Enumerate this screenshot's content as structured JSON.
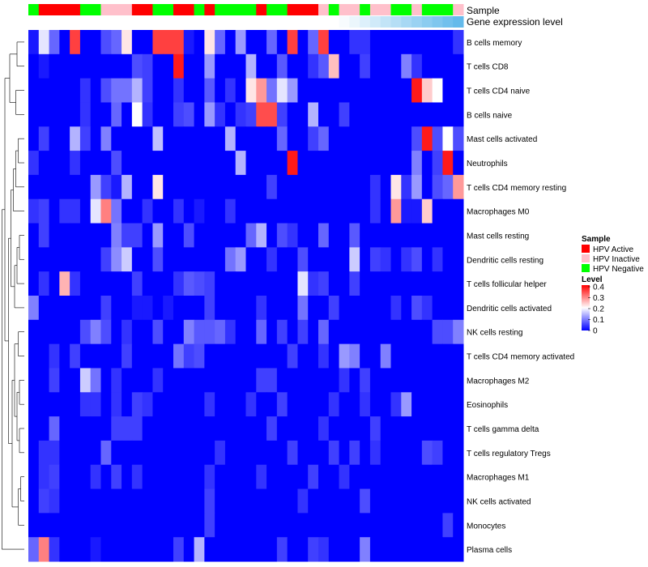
{
  "chart_data": {
    "type": "heatmap",
    "annotation_tracks": [
      "Sample",
      "Gene expression level"
    ],
    "rows": [
      "B cells memory",
      "T cells CD8",
      "T cells CD4 naive",
      "B cells naive",
      "Mast cells activated",
      "Neutrophils",
      "T cells CD4 memory resting",
      "Macrophages M0",
      "Mast cells resting",
      "Dendritic cells resting",
      "T cells follicular helper",
      "Dendritic cells activated",
      "NK cells resting",
      "T cells CD4 memory activated",
      "Macrophages M2",
      "Eosinophils",
      "T cells gamma delta",
      "T cells regulatory  Tregs",
      "Macrophages M1",
      "NK cells activated",
      "Monocytes",
      "Plasma cells"
    ],
    "sample_groups": [
      "HPV Negative",
      "HPV Active",
      "HPV Active",
      "HPV Active",
      "HPV Active",
      "HPV Negative",
      "HPV Negative",
      "HPV Inactive",
      "HPV Inactive",
      "HPV Inactive",
      "HPV Active",
      "HPV Active",
      "HPV Negative",
      "HPV Negative",
      "HPV Active",
      "HPV Active",
      "HPV Negative",
      "HPV Active",
      "HPV Negative",
      "HPV Negative",
      "HPV Negative",
      "HPV Negative",
      "HPV Active",
      "HPV Negative",
      "HPV Negative",
      "HPV Active",
      "HPV Active",
      "HPV Active",
      "HPV Inactive",
      "HPV Negative",
      "HPV Inactive",
      "HPV Inactive",
      "HPV Negative",
      "HPV Inactive",
      "HPV Inactive",
      "HPV Negative",
      "HPV Negative",
      "HPV Inactive",
      "HPV Negative",
      "HPV Negative",
      "HPV Negative",
      "HPV Inactive"
    ],
    "expression_track": [
      0,
      0,
      0,
      0,
      0,
      0,
      0,
      0,
      0,
      0,
      0,
      0,
      0,
      0,
      0,
      0,
      0,
      0,
      0,
      0,
      0,
      0,
      0,
      0,
      0,
      0,
      0,
      0,
      0,
      0,
      0.05,
      0.12,
      0.2,
      0.28,
      0.36,
      0.44,
      0.52,
      0.6,
      0.68,
      0.76,
      0.84,
      0.92
    ],
    "values": [
      [
        0.02,
        0.18,
        0.08,
        0.0,
        0.35,
        0.0,
        0.0,
        0.06,
        0.08,
        0.22,
        0.0,
        0.0,
        0.35,
        0.35,
        0.35,
        0.02,
        0.0,
        0.22,
        0.08,
        0.0,
        0.12,
        0.0,
        0.0,
        0.08,
        0.0,
        0.35,
        0.0,
        0.08,
        0.35,
        0.0,
        0.0,
        0.04,
        0.04,
        0.0,
        0.0,
        0.0,
        0.0,
        0.0,
        0.0,
        0.0,
        0.0,
        0.04
      ],
      [
        0.0,
        0.02,
        0.0,
        0.0,
        0.0,
        0.0,
        0.0,
        0.0,
        0.0,
        0.0,
        0.06,
        0.05,
        0.0,
        0.0,
        0.38,
        0.0,
        0.0,
        0.12,
        0.0,
        0.0,
        0.0,
        0.14,
        0.0,
        0.0,
        0.07,
        0.0,
        0.0,
        0.04,
        0.07,
        0.25,
        0.0,
        0.0,
        0.05,
        0.0,
        0.0,
        0.0,
        0.1,
        0.04,
        0.0,
        0.0,
        0.0,
        0.0
      ],
      [
        0.0,
        0.0,
        0.0,
        0.0,
        0.0,
        0.04,
        0.0,
        0.06,
        0.09,
        0.09,
        0.14,
        0.05,
        0.0,
        0.0,
        0.04,
        0.0,
        0.0,
        0.07,
        0.0,
        0.04,
        0.0,
        0.22,
        0.28,
        0.09,
        0.18,
        0.12,
        0.0,
        0.0,
        0.0,
        0.0,
        0.0,
        0.0,
        0.0,
        0.0,
        0.0,
        0.0,
        0.0,
        0.38,
        0.24,
        0.2,
        0.0,
        0.0
      ],
      [
        0.0,
        0.0,
        0.0,
        0.0,
        0.0,
        0.04,
        0.0,
        0.0,
        0.08,
        0.0,
        0.2,
        0.04,
        0.0,
        0.0,
        0.05,
        0.06,
        0.0,
        0.12,
        0.04,
        0.0,
        0.04,
        0.05,
        0.34,
        0.34,
        0.05,
        0.0,
        0.0,
        0.14,
        0.0,
        0.0,
        0.05,
        0.0,
        0.0,
        0.0,
        0.0,
        0.0,
        0.0,
        0.0,
        0.0,
        0.0,
        0.0,
        0.0
      ],
      [
        0.0,
        0.05,
        0.0,
        0.0,
        0.14,
        0.05,
        0.0,
        0.1,
        0.0,
        0.0,
        0.0,
        0.0,
        0.15,
        0.0,
        0.0,
        0.0,
        0.0,
        0.0,
        0.0,
        0.14,
        0.0,
        0.0,
        0.0,
        0.0,
        0.08,
        0.0,
        0.0,
        0.05,
        0.08,
        0.0,
        0.0,
        0.0,
        0.0,
        0.0,
        0.0,
        0.0,
        0.0,
        0.06,
        0.38,
        0.06,
        0.2,
        0.06
      ],
      [
        0.04,
        0.0,
        0.0,
        0.0,
        0.04,
        0.0,
        0.0,
        0.0,
        0.06,
        0.0,
        0.0,
        0.0,
        0.0,
        0.0,
        0.0,
        0.0,
        0.0,
        0.0,
        0.0,
        0.0,
        0.14,
        0.0,
        0.0,
        0.0,
        0.0,
        0.38,
        0.0,
        0.0,
        0.0,
        0.0,
        0.0,
        0.0,
        0.0,
        0.0,
        0.0,
        0.0,
        0.0,
        0.1,
        0.0,
        0.05,
        0.38,
        0.0
      ],
      [
        0.0,
        0.0,
        0.0,
        0.0,
        0.0,
        0.0,
        0.12,
        0.05,
        0.02,
        0.14,
        0.0,
        0.0,
        0.22,
        0.0,
        0.0,
        0.0,
        0.0,
        0.0,
        0.0,
        0.0,
        0.0,
        0.0,
        0.0,
        0.05,
        0.0,
        0.0,
        0.0,
        0.0,
        0.0,
        0.0,
        0.0,
        0.0,
        0.0,
        0.04,
        0.0,
        0.22,
        0.04,
        0.12,
        0.0,
        0.06,
        0.08,
        0.28
      ],
      [
        0.04,
        0.05,
        0.0,
        0.04,
        0.04,
        0.0,
        0.18,
        0.3,
        0.09,
        0.0,
        0.0,
        0.04,
        0.0,
        0.0,
        0.04,
        0.0,
        0.02,
        0.0,
        0.0,
        0.04,
        0.0,
        0.0,
        0.0,
        0.0,
        0.0,
        0.0,
        0.0,
        0.0,
        0.0,
        0.0,
        0.0,
        0.0,
        0.0,
        0.04,
        0.0,
        0.28,
        0.02,
        0.02,
        0.24,
        0.0,
        0.0,
        0.0
      ],
      [
        0.0,
        0.05,
        0.0,
        0.0,
        0.0,
        0.0,
        0.0,
        0.0,
        0.1,
        0.05,
        0.05,
        0.0,
        0.12,
        0.0,
        0.0,
        0.06,
        0.0,
        0.0,
        0.0,
        0.0,
        0.0,
        0.08,
        0.14,
        0.0,
        0.06,
        0.04,
        0.0,
        0.0,
        0.08,
        0.0,
        0.0,
        0.07,
        0.0,
        0.0,
        0.0,
        0.0,
        0.0,
        0.0,
        0.0,
        0.0,
        0.0,
        0.0
      ],
      [
        0.0,
        0.0,
        0.0,
        0.0,
        0.0,
        0.0,
        0.0,
        0.05,
        0.11,
        0.16,
        0.0,
        0.0,
        0.06,
        0.0,
        0.0,
        0.0,
        0.0,
        0.0,
        0.0,
        0.09,
        0.12,
        0.0,
        0.0,
        0.04,
        0.0,
        0.0,
        0.06,
        0.0,
        0.0,
        0.0,
        0.0,
        0.16,
        0.0,
        0.05,
        0.04,
        0.0,
        0.04,
        0.06,
        0.0,
        0.04,
        0.0,
        0.0
      ],
      [
        0.0,
        0.04,
        0.0,
        0.26,
        0.04,
        0.0,
        0.0,
        0.0,
        0.0,
        0.0,
        0.05,
        0.0,
        0.0,
        0.0,
        0.04,
        0.07,
        0.06,
        0.05,
        0.0,
        0.0,
        0.0,
        0.0,
        0.0,
        0.0,
        0.0,
        0.0,
        0.18,
        0.04,
        0.05,
        0.0,
        0.0,
        0.05,
        0.0,
        0.0,
        0.0,
        0.0,
        0.0,
        0.0,
        0.0,
        0.0,
        0.0,
        0.0
      ],
      [
        0.1,
        0.0,
        0.0,
        0.0,
        0.0,
        0.0,
        0.0,
        0.05,
        0.0,
        0.0,
        0.02,
        0.02,
        0.0,
        0.02,
        0.0,
        0.0,
        0.0,
        0.05,
        0.0,
        0.0,
        0.0,
        0.0,
        0.04,
        0.0,
        0.0,
        0.0,
        0.09,
        0.0,
        0.0,
        0.05,
        0.0,
        0.0,
        0.0,
        0.0,
        0.0,
        0.04,
        0.0,
        0.06,
        0.04,
        0.0,
        0.0,
        0.0
      ],
      [
        0.0,
        0.0,
        0.0,
        0.0,
        0.0,
        0.06,
        0.1,
        0.06,
        0.0,
        0.04,
        0.0,
        0.0,
        0.06,
        0.0,
        0.0,
        0.1,
        0.07,
        0.07,
        0.08,
        0.04,
        0.0,
        0.0,
        0.08,
        0.0,
        0.05,
        0.0,
        0.05,
        0.0,
        0.08,
        0.0,
        0.0,
        0.0,
        0.0,
        0.0,
        0.0,
        0.0,
        0.0,
        0.0,
        0.0,
        0.06,
        0.06,
        0.1
      ],
      [
        0.0,
        0.0,
        0.04,
        0.0,
        0.05,
        0.0,
        0.0,
        0.0,
        0.0,
        0.05,
        0.0,
        0.0,
        0.0,
        0.0,
        0.09,
        0.05,
        0.06,
        0.0,
        0.0,
        0.0,
        0.0,
        0.0,
        0.0,
        0.0,
        0.0,
        0.05,
        0.0,
        0.0,
        0.04,
        0.0,
        0.12,
        0.1,
        0.0,
        0.0,
        0.1,
        0.0,
        0.0,
        0.0,
        0.0,
        0.0,
        0.0,
        0.0
      ],
      [
        0.0,
        0.0,
        0.05,
        0.0,
        0.0,
        0.16,
        0.09,
        0.0,
        0.04,
        0.0,
        0.0,
        0.0,
        0.04,
        0.0,
        0.0,
        0.0,
        0.0,
        0.0,
        0.0,
        0.0,
        0.0,
        0.0,
        0.05,
        0.05,
        0.0,
        0.0,
        0.0,
        0.0,
        0.0,
        0.0,
        0.04,
        0.0,
        0.05,
        0.0,
        0.0,
        0.0,
        0.0,
        0.0,
        0.0,
        0.0,
        0.0,
        0.0
      ],
      [
        0.0,
        0.0,
        0.0,
        0.0,
        0.0,
        0.04,
        0.04,
        0.0,
        0.04,
        0.0,
        0.05,
        0.04,
        0.0,
        0.0,
        0.0,
        0.0,
        0.0,
        0.04,
        0.0,
        0.0,
        0.0,
        0.04,
        0.0,
        0.0,
        0.05,
        0.0,
        0.0,
        0.0,
        0.0,
        0.04,
        0.0,
        0.0,
        0.04,
        0.0,
        0.0,
        0.04,
        0.12,
        0.0,
        0.0,
        0.0,
        0.0,
        0.0
      ],
      [
        0.0,
        0.0,
        0.08,
        0.0,
        0.0,
        0.0,
        0.0,
        0.0,
        0.05,
        0.05,
        0.05,
        0.0,
        0.0,
        0.0,
        0.0,
        0.0,
        0.0,
        0.0,
        0.0,
        0.0,
        0.0,
        0.0,
        0.0,
        0.05,
        0.0,
        0.0,
        0.0,
        0.0,
        0.04,
        0.0,
        0.0,
        0.0,
        0.0,
        0.05,
        0.0,
        0.0,
        0.0,
        0.0,
        0.0,
        0.0,
        0.0,
        0.0
      ],
      [
        0.0,
        0.04,
        0.04,
        0.0,
        0.0,
        0.0,
        0.0,
        0.08,
        0.0,
        0.0,
        0.0,
        0.0,
        0.0,
        0.0,
        0.0,
        0.0,
        0.0,
        0.0,
        0.04,
        0.0,
        0.0,
        0.0,
        0.0,
        0.0,
        0.0,
        0.05,
        0.0,
        0.0,
        0.0,
        0.05,
        0.0,
        0.05,
        0.0,
        0.04,
        0.0,
        0.0,
        0.0,
        0.0,
        0.06,
        0.05,
        0.0,
        0.0
      ],
      [
        0.0,
        0.04,
        0.05,
        0.0,
        0.0,
        0.0,
        0.04,
        0.0,
        0.05,
        0.0,
        0.04,
        0.0,
        0.0,
        0.0,
        0.0,
        0.0,
        0.0,
        0.04,
        0.0,
        0.0,
        0.0,
        0.0,
        0.04,
        0.0,
        0.0,
        0.0,
        0.0,
        0.05,
        0.0,
        0.0,
        0.04,
        0.0,
        0.0,
        0.0,
        0.0,
        0.0,
        0.0,
        0.0,
        0.0,
        0.0,
        0.0,
        0.0
      ],
      [
        0.0,
        0.05,
        0.04,
        0.0,
        0.0,
        0.0,
        0.0,
        0.0,
        0.0,
        0.0,
        0.0,
        0.0,
        0.0,
        0.0,
        0.0,
        0.0,
        0.0,
        0.05,
        0.0,
        0.0,
        0.0,
        0.0,
        0.0,
        0.0,
        0.0,
        0.0,
        0.04,
        0.0,
        0.0,
        0.0,
        0.0,
        0.0,
        0.06,
        0.0,
        0.0,
        0.0,
        0.0,
        0.0,
        0.0,
        0.0,
        0.0,
        0.0
      ],
      [
        0.0,
        0.0,
        0.0,
        0.0,
        0.0,
        0.0,
        0.0,
        0.0,
        0.0,
        0.0,
        0.0,
        0.0,
        0.0,
        0.0,
        0.0,
        0.0,
        0.0,
        0.05,
        0.0,
        0.0,
        0.0,
        0.0,
        0.0,
        0.0,
        0.0,
        0.0,
        0.0,
        0.0,
        0.0,
        0.0,
        0.0,
        0.0,
        0.0,
        0.0,
        0.0,
        0.0,
        0.0,
        0.0,
        0.0,
        0.0,
        0.05,
        0.0
      ],
      [
        0.08,
        0.3,
        0.04,
        0.0,
        0.0,
        0.0,
        0.02,
        0.0,
        0.0,
        0.0,
        0.0,
        0.0,
        0.0,
        0.0,
        0.05,
        0.0,
        0.14,
        0.0,
        0.0,
        0.0,
        0.0,
        0.0,
        0.0,
        0.0,
        0.05,
        0.0,
        0.0,
        0.05,
        0.04,
        0.0,
        0.0,
        0.0,
        0.1,
        0.0,
        0.0,
        0.0,
        0.0,
        0.0,
        0.0,
        0.0,
        0.0,
        0.0
      ]
    ],
    "color_scale": {
      "min": 0,
      "max": 0.4,
      "low": "#0000ff",
      "mid": "#ffffff",
      "high": "#ff0000"
    },
    "row_dendrogram": "left"
  },
  "legend": {
    "sample_title": "Sample",
    "sample_items": [
      {
        "label": "HPV Active",
        "color": "#ff0000"
      },
      {
        "label": "HPV Inactive",
        "color": "#ffc0cb"
      },
      {
        "label": "HPV Negative",
        "color": "#00ff00"
      }
    ],
    "level_title": "Level",
    "level_ticks": [
      "0.4",
      "0.3",
      "0.2",
      "0.1",
      "0"
    ]
  },
  "expression_colors": {
    "low": "#ffffff",
    "high": "#56b4e9"
  }
}
